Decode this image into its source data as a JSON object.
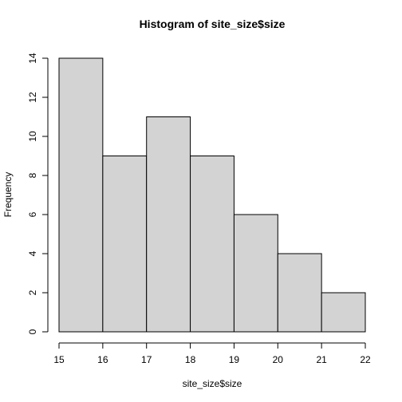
{
  "chart_data": {
    "type": "bar",
    "title": "Histogram of site_size$size",
    "xlabel": "site_size$size",
    "ylabel": "Frequency",
    "bins": [
      {
        "start": 15,
        "end": 16,
        "count": 14
      },
      {
        "start": 16,
        "end": 17,
        "count": 9
      },
      {
        "start": 17,
        "end": 18,
        "count": 11
      },
      {
        "start": 18,
        "end": 19,
        "count": 9
      },
      {
        "start": 19,
        "end": 20,
        "count": 6
      },
      {
        "start": 20,
        "end": 21,
        "count": 4
      },
      {
        "start": 21,
        "end": 22,
        "count": 2
      }
    ],
    "xlim": [
      15,
      22
    ],
    "ylim": [
      0,
      14
    ],
    "x_ticks": [
      15,
      16,
      17,
      18,
      19,
      20,
      21,
      22
    ],
    "y_ticks": [
      0,
      2,
      4,
      6,
      8,
      10,
      12,
      14
    ],
    "grid": false,
    "colors": {
      "bar_fill": "#d3d3d3",
      "bar_stroke": "#000000",
      "background": "#ffffff"
    }
  }
}
